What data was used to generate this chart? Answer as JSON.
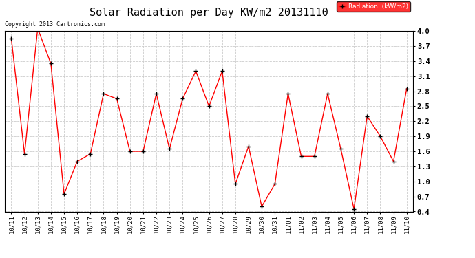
{
  "title": "Solar Radiation per Day KW/m2 20131110",
  "copyright_text": "Copyright 2013 Cartronics.com",
  "legend_label": "Radiation  (kW/m2)",
  "x_labels": [
    "10/11",
    "10/12",
    "10/13",
    "10/14",
    "10/15",
    "10/16",
    "10/17",
    "10/18",
    "10/19",
    "10/20",
    "10/21",
    "10/22",
    "10/23",
    "10/24",
    "10/25",
    "10/26",
    "10/27",
    "10/28",
    "10/29",
    "10/30",
    "10/31",
    "11/01",
    "11/02",
    "11/03",
    "11/04",
    "11/05",
    "11/06",
    "11/07",
    "11/08",
    "11/09",
    "11/10"
  ],
  "y_values": [
    3.85,
    1.55,
    4.05,
    3.35,
    0.75,
    1.4,
    1.55,
    2.75,
    2.65,
    1.6,
    1.6,
    2.75,
    1.65,
    2.65,
    3.2,
    2.5,
    3.2,
    0.95,
    1.7,
    0.5,
    0.95,
    2.75,
    1.5,
    1.5,
    2.75,
    1.65,
    0.45,
    2.3,
    1.9,
    1.4,
    2.85
  ],
  "y_min": 0.4,
  "y_max": 4.0,
  "y_ticks": [
    0.4,
    0.7,
    1.0,
    1.3,
    1.6,
    1.9,
    2.2,
    2.5,
    2.8,
    3.1,
    3.4,
    3.7,
    4.0
  ],
  "line_color": "red",
  "marker_color": "black",
  "bg_color": "#ffffff",
  "grid_color": "#cccccc",
  "legend_bg": "red",
  "legend_text_color": "white",
  "title_fontsize": 11,
  "tick_fontsize": 6.5,
  "copyright_fontsize": 6.0
}
